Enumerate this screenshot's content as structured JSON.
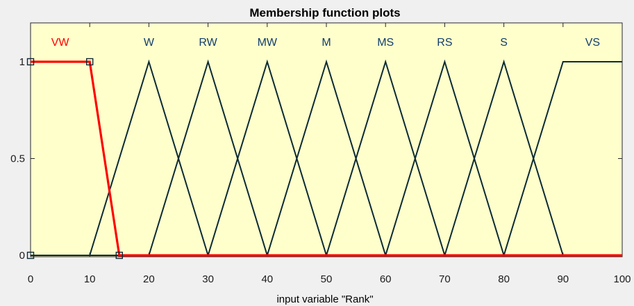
{
  "chart_data": {
    "type": "line",
    "title": "Membership function plots",
    "xlabel": "input variable \"Rank\"",
    "ylabel": "",
    "xlim": [
      0,
      100
    ],
    "ylim": [
      0,
      1.1
    ],
    "xticks": [
      "0",
      "10",
      "20",
      "30",
      "40",
      "50",
      "60",
      "70",
      "80",
      "90",
      "100"
    ],
    "yticks": [
      "0",
      "0.5",
      "1"
    ],
    "grid": false,
    "colors": {
      "plot_background": "#ffffcc",
      "default_line": "#0b2a33",
      "selected_line": "#ff0000",
      "label_default": "#123d6b",
      "label_selected": "#ff0000"
    },
    "series": [
      {
        "name": "VW",
        "selected": true,
        "label_x": 5,
        "x": [
          0,
          10,
          15,
          100
        ],
        "y": [
          1,
          1,
          0,
          0
        ]
      },
      {
        "name": "W",
        "selected": false,
        "label_x": 20,
        "x": [
          0,
          10,
          20,
          30,
          100
        ],
        "y": [
          0,
          0,
          1,
          0,
          0
        ]
      },
      {
        "name": "RW",
        "selected": false,
        "label_x": 30,
        "x": [
          0,
          20,
          30,
          40,
          100
        ],
        "y": [
          0,
          0,
          1,
          0,
          0
        ]
      },
      {
        "name": "MW",
        "selected": false,
        "label_x": 40,
        "x": [
          0,
          30,
          40,
          50,
          100
        ],
        "y": [
          0,
          0,
          1,
          0,
          0
        ]
      },
      {
        "name": "M",
        "selected": false,
        "label_x": 50,
        "x": [
          0,
          40,
          50,
          60,
          100
        ],
        "y": [
          0,
          0,
          1,
          0,
          0
        ]
      },
      {
        "name": "MS",
        "selected": false,
        "label_x": 60,
        "x": [
          0,
          50,
          60,
          70,
          100
        ],
        "y": [
          0,
          0,
          1,
          0,
          0
        ]
      },
      {
        "name": "RS",
        "selected": false,
        "label_x": 70,
        "x": [
          0,
          60,
          70,
          80,
          100
        ],
        "y": [
          0,
          0,
          1,
          0,
          0
        ]
      },
      {
        "name": "S",
        "selected": false,
        "label_x": 80,
        "x": [
          0,
          70,
          80,
          90,
          100
        ],
        "y": [
          0,
          0,
          1,
          0,
          0
        ]
      },
      {
        "name": "VS",
        "selected": false,
        "label_x": 95,
        "x": [
          0,
          80,
          90,
          100
        ],
        "y": [
          0,
          0,
          1,
          1
        ]
      }
    ],
    "markers": [
      {
        "x": 0,
        "y": 1
      },
      {
        "x": 10,
        "y": 1
      },
      {
        "x": 0,
        "y": 0
      },
      {
        "x": 15,
        "y": 0
      }
    ]
  }
}
